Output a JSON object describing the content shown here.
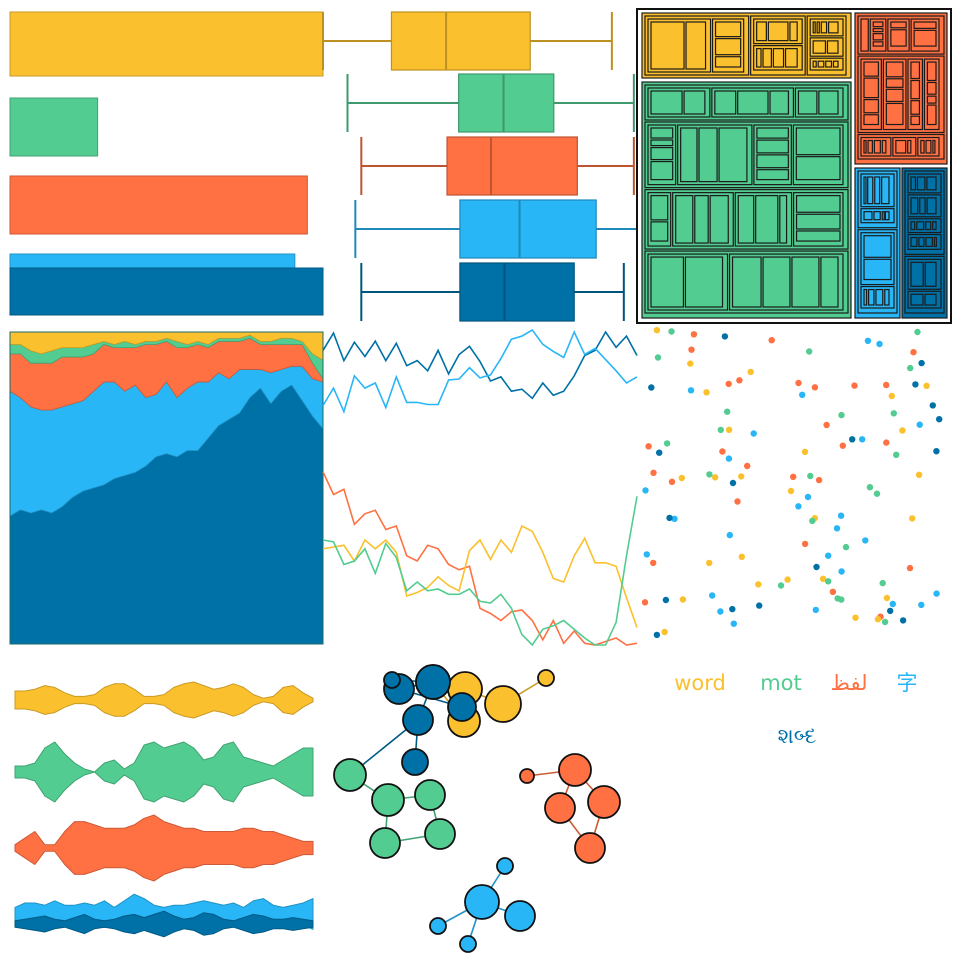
{
  "colors": [
    "#fbc02d",
    "#52cc90",
    "#ff7043",
    "#29b6f6",
    "#0071a7"
  ],
  "chart_data": [
    {
      "panel": "bar",
      "type": "bar",
      "orientation": "horizontal",
      "values": [
        100,
        28,
        95,
        91,
        100
      ],
      "xlim": [
        0,
        100
      ]
    },
    {
      "panel": "boxplot",
      "type": "boxplot",
      "series": [
        {
          "min": 0.0,
          "q1": 0.218,
          "median": 0.392,
          "q3": 0.66,
          "max": 0.92
        },
        {
          "min": 0.078,
          "q1": 0.432,
          "median": 0.575,
          "q3": 0.735,
          "max": 0.99
        },
        {
          "min": 0.122,
          "q1": 0.395,
          "median": 0.535,
          "q3": 0.81,
          "max": 0.99
        },
        {
          "min": 0.103,
          "q1": 0.436,
          "median": 0.626,
          "q3": 0.87,
          "max": 1.0
        },
        {
          "min": 0.122,
          "q1": 0.436,
          "median": 0.578,
          "q3": 0.8,
          "max": 0.958
        }
      ]
    },
    {
      "panel": "treemap",
      "type": "treemap",
      "groups": [
        {
          "weight": 20.5
        },
        {
          "weight": 52.0
        },
        {
          "weight": 12.5
        },
        {
          "weight": 7.5
        },
        {
          "weight": 7.5
        }
      ]
    },
    {
      "panel": "area",
      "type": "area",
      "stacked": true,
      "ylim": [
        0,
        1
      ],
      "series": [
        {
          "values": [
            0.41,
            0.43,
            0.42,
            0.43,
            0.42,
            0.44,
            0.47,
            0.49,
            0.5,
            0.51,
            0.53,
            0.54,
            0.55,
            0.57,
            0.6,
            0.61,
            0.6,
            0.62,
            0.62,
            0.66,
            0.7,
            0.72,
            0.74,
            0.79,
            0.82,
            0.77,
            0.81,
            0.83,
            0.78,
            0.73,
            0.69
          ]
        },
        {
          "values": [
            0.4,
            0.36,
            0.34,
            0.32,
            0.33,
            0.32,
            0.3,
            0.29,
            0.31,
            0.33,
            0.31,
            0.27,
            0.28,
            0.22,
            0.2,
            0.23,
            0.19,
            0.2,
            0.22,
            0.18,
            0.17,
            0.13,
            0.14,
            0.09,
            0.06,
            0.1,
            0.07,
            0.06,
            0.11,
            0.12,
            0.15
          ]
        },
        {
          "values": [
            0.12,
            0.14,
            0.14,
            0.15,
            0.15,
            0.16,
            0.15,
            0.14,
            0.12,
            0.12,
            0.11,
            0.14,
            0.12,
            0.17,
            0.16,
            0.13,
            0.16,
            0.13,
            0.12,
            0.11,
            0.1,
            0.12,
            0.09,
            0.1,
            0.08,
            0.09,
            0.08,
            0.07,
            0.07,
            0.05,
            0.01
          ]
        },
        {
          "values": [
            0.03,
            0.03,
            0.04,
            0.03,
            0.04,
            0.03,
            0.03,
            0.03,
            0.03,
            0.01,
            0.01,
            0.02,
            0.01,
            0.01,
            0.01,
            0.01,
            0.02,
            0.01,
            0.01,
            0.01,
            0.01,
            0.01,
            0.01,
            0.01,
            0.01,
            0.01,
            0.02,
            0.02,
            0.01,
            0.03,
            0.06
          ]
        },
        {
          "values": [
            0.04,
            0.04,
            0.06,
            0.07,
            0.06,
            0.05,
            0.05,
            0.05,
            0.04,
            0.03,
            0.04,
            0.03,
            0.04,
            0.03,
            0.03,
            0.02,
            0.03,
            0.04,
            0.03,
            0.04,
            0.02,
            0.02,
            0.02,
            0.01,
            0.03,
            0.03,
            0.02,
            0.02,
            0.03,
            0.07,
            0.09
          ]
        }
      ]
    },
    {
      "panel": "lines_top",
      "type": "line",
      "ylim": [
        0,
        1
      ],
      "series": [
        {
          "color_index": 4,
          "values": [
            0.8,
            0.97,
            0.7,
            0.88,
            0.74,
            0.89,
            0.7,
            0.87,
            0.65,
            0.7,
            0.6,
            0.8,
            0.57,
            0.76,
            0.84,
            0.69,
            0.5,
            0.54,
            0.4,
            0.42,
            0.33,
            0.48,
            0.36,
            0.4,
            0.55,
            0.75,
            0.8,
            0.98,
            0.83,
            0.94,
            0.75
          ]
        },
        {
          "color_index": 3,
          "values": [
            0.26,
            0.43,
            0.2,
            0.55,
            0.43,
            0.48,
            0.24,
            0.54,
            0.29,
            0.29,
            0.27,
            0.27,
            0.51,
            0.52,
            0.63,
            0.53,
            0.56,
            0.72,
            0.91,
            0.94,
            1.0,
            0.86,
            0.79,
            0.73,
            0.98,
            0.76,
            0.82,
            0.71,
            0.6,
            0.48,
            0.54
          ]
        }
      ]
    },
    {
      "panel": "lines_bottom",
      "type": "line",
      "ylim": [
        0,
        1
      ],
      "series": [
        {
          "color_index": 2,
          "values": [
            0.99,
            0.86,
            0.89,
            0.69,
            0.75,
            0.77,
            0.66,
            0.68,
            0.51,
            0.48,
            0.57,
            0.55,
            0.46,
            0.43,
            0.45,
            0.21,
            0.18,
            0.14,
            0.19,
            0.2,
            0.14,
            0.03,
            0.14,
            0.01,
            0.08,
            0.01,
            0.0,
            0.02,
            0.04,
            0.0,
            0.01
          ]
        },
        {
          "color_index": 0,
          "values": [
            0.55,
            0.56,
            0.57,
            0.48,
            0.6,
            0.55,
            0.6,
            0.53,
            0.28,
            0.3,
            0.33,
            0.39,
            0.34,
            0.31,
            0.54,
            0.6,
            0.49,
            0.6,
            0.53,
            0.68,
            0.65,
            0.53,
            0.38,
            0.36,
            0.51,
            0.61,
            0.47,
            0.47,
            0.45,
            0.27,
            0.1
          ]
        },
        {
          "color_index": 1,
          "values": [
            0.6,
            0.59,
            0.46,
            0.48,
            0.55,
            0.41,
            0.58,
            0.5,
            0.31,
            0.36,
            0.31,
            0.32,
            0.29,
            0.29,
            0.32,
            0.25,
            0.24,
            0.29,
            0.21,
            0.06,
            0.0,
            0.09,
            0.11,
            0.14,
            0.09,
            0.04,
            0.0,
            0.0,
            0.13,
            0.51,
            0.85
          ]
        }
      ]
    },
    {
      "panel": "scatter",
      "type": "scatter",
      "point_count": 120,
      "seed": 7
    },
    {
      "panel": "violins",
      "type": "ridgeline",
      "series": [
        {
          "widths": [
            0.5,
            0.5,
            0.6,
            0.8,
            0.7,
            0.4,
            0.2,
            0.2,
            0.3,
            0.7,
            0.9,
            0.9,
            0.6,
            0.2,
            0.2,
            0.3,
            0.7,
            0.9,
            1.0,
            0.8,
            0.6,
            0.7,
            0.9,
            0.7,
            0.3,
            0.1,
            0.2,
            0.7,
            0.8,
            0.4,
            0.1
          ]
        },
        {
          "widths": [
            0.2,
            0.2,
            0.3,
            0.8,
            1.0,
            0.6,
            0.3,
            0.1,
            0.0,
            0.3,
            0.4,
            0.1,
            0.3,
            0.9,
            1.0,
            0.8,
            0.9,
            1.0,
            0.8,
            0.4,
            0.5,
            0.9,
            1.0,
            0.5,
            0.4,
            0.3,
            0.2,
            0.4,
            0.6,
            0.8,
            0.8
          ]
        },
        {
          "widths": [
            0.1,
            0.3,
            0.5,
            0.1,
            0.1,
            0.5,
            0.8,
            0.8,
            0.7,
            0.6,
            0.6,
            0.6,
            0.7,
            0.9,
            1.0,
            0.8,
            0.7,
            0.6,
            0.6,
            0.5,
            0.5,
            0.5,
            0.5,
            0.6,
            0.6,
            0.5,
            0.5,
            0.4,
            0.3,
            0.2,
            0.2
          ]
        },
        {
          "widths": [
            0.3,
            0.5,
            0.5,
            0.4,
            0.6,
            0.4,
            0.4,
            0.5,
            0.4,
            0.6,
            0.3,
            0.6,
            0.9,
            0.7,
            0.4,
            0.3,
            0.4,
            0.4,
            0.5,
            0.6,
            0.5,
            0.4,
            0.5,
            0.3,
            0.6,
            0.7,
            0.4,
            0.3,
            0.4,
            0.5,
            0.7
          ]
        },
        {
          "widths": [
            0.2,
            0.3,
            0.4,
            0.5,
            0.3,
            0.2,
            0.4,
            0.6,
            0.3,
            0.2,
            0.3,
            0.5,
            0.6,
            0.4,
            0.6,
            0.8,
            0.5,
            0.3,
            0.4,
            0.7,
            0.6,
            0.3,
            0.2,
            0.4,
            0.6,
            0.5,
            0.3,
            0.3,
            0.4,
            0.3,
            0.2
          ]
        }
      ]
    },
    {
      "panel": "network",
      "type": "network",
      "clusters": [
        {
          "color_index": 0,
          "nodes": [
            {
              "id": "y1",
              "size": 17
            },
            {
              "id": "y2",
              "size": 17
            },
            {
              "id": "y3",
              "size": 18
            },
            {
              "id": "y4",
              "size": 8
            },
            {
              "id": "y5",
              "size": 16
            }
          ],
          "links": [
            [
              "y1",
              "y2"
            ],
            [
              "y2",
              "y3"
            ],
            [
              "y3",
              "y4"
            ],
            [
              "y1",
              "y5"
            ],
            [
              "y2",
              "y5"
            ]
          ]
        },
        {
          "color_index": 4,
          "nodes": [
            {
              "id": "d1",
              "size": 17
            },
            {
              "id": "d2",
              "size": 15
            },
            {
              "id": "d3",
              "size": 15
            },
            {
              "id": "d4",
              "size": 14
            },
            {
              "id": "d5",
              "size": 13
            },
            {
              "id": "d6",
              "size": 8
            }
          ],
          "links": [
            [
              "d1",
              "d2"
            ],
            [
              "d1",
              "d3"
            ],
            [
              "d2",
              "d4"
            ],
            [
              "d3",
              "d5"
            ],
            [
              "d1",
              "d6"
            ],
            [
              "d3",
              "g1"
            ]
          ]
        },
        {
          "color_index": 1,
          "nodes": [
            {
              "id": "g1",
              "size": 16
            },
            {
              "id": "g2",
              "size": 16
            },
            {
              "id": "g3",
              "size": 15
            },
            {
              "id": "g4",
              "size": 15
            },
            {
              "id": "g5",
              "size": 15
            }
          ],
          "links": [
            [
              "g1",
              "g2"
            ],
            [
              "g2",
              "g3"
            ],
            [
              "g3",
              "g5"
            ],
            [
              "g2",
              "g4"
            ],
            [
              "g4",
              "g5"
            ]
          ]
        },
        {
          "color_index": 2,
          "nodes": [
            {
              "id": "o1",
              "size": 16
            },
            {
              "id": "o2",
              "size": 15
            },
            {
              "id": "o3",
              "size": 16
            },
            {
              "id": "o4",
              "size": 15
            },
            {
              "id": "o5",
              "size": 7
            }
          ],
          "links": [
            [
              "o1",
              "o2"
            ],
            [
              "o1",
              "o3"
            ],
            [
              "o2",
              "o4"
            ],
            [
              "o3",
              "o4"
            ],
            [
              "o1",
              "o5"
            ]
          ]
        },
        {
          "color_index": 3,
          "nodes": [
            {
              "id": "b1",
              "size": 17
            },
            {
              "id": "b2",
              "size": 15
            },
            {
              "id": "b3",
              "size": 8
            },
            {
              "id": "b4",
              "size": 8
            },
            {
              "id": "b5",
              "size": 8
            }
          ],
          "links": [
            [
              "b1",
              "b2"
            ],
            [
              "b1",
              "b3"
            ],
            [
              "b1",
              "b4"
            ],
            [
              "b1",
              "b5"
            ]
          ]
        }
      ]
    },
    {
      "panel": "wordcloud",
      "type": "wordcloud",
      "words": [
        {
          "text": "word",
          "color_index": 0
        },
        {
          "text": "mot",
          "color_index": 1
        },
        {
          "text": "لفظ",
          "color_index": 2
        },
        {
          "text": "字",
          "color_index": 3
        },
        {
          "text": "શબ્દ",
          "color_index": 4
        }
      ]
    }
  ]
}
